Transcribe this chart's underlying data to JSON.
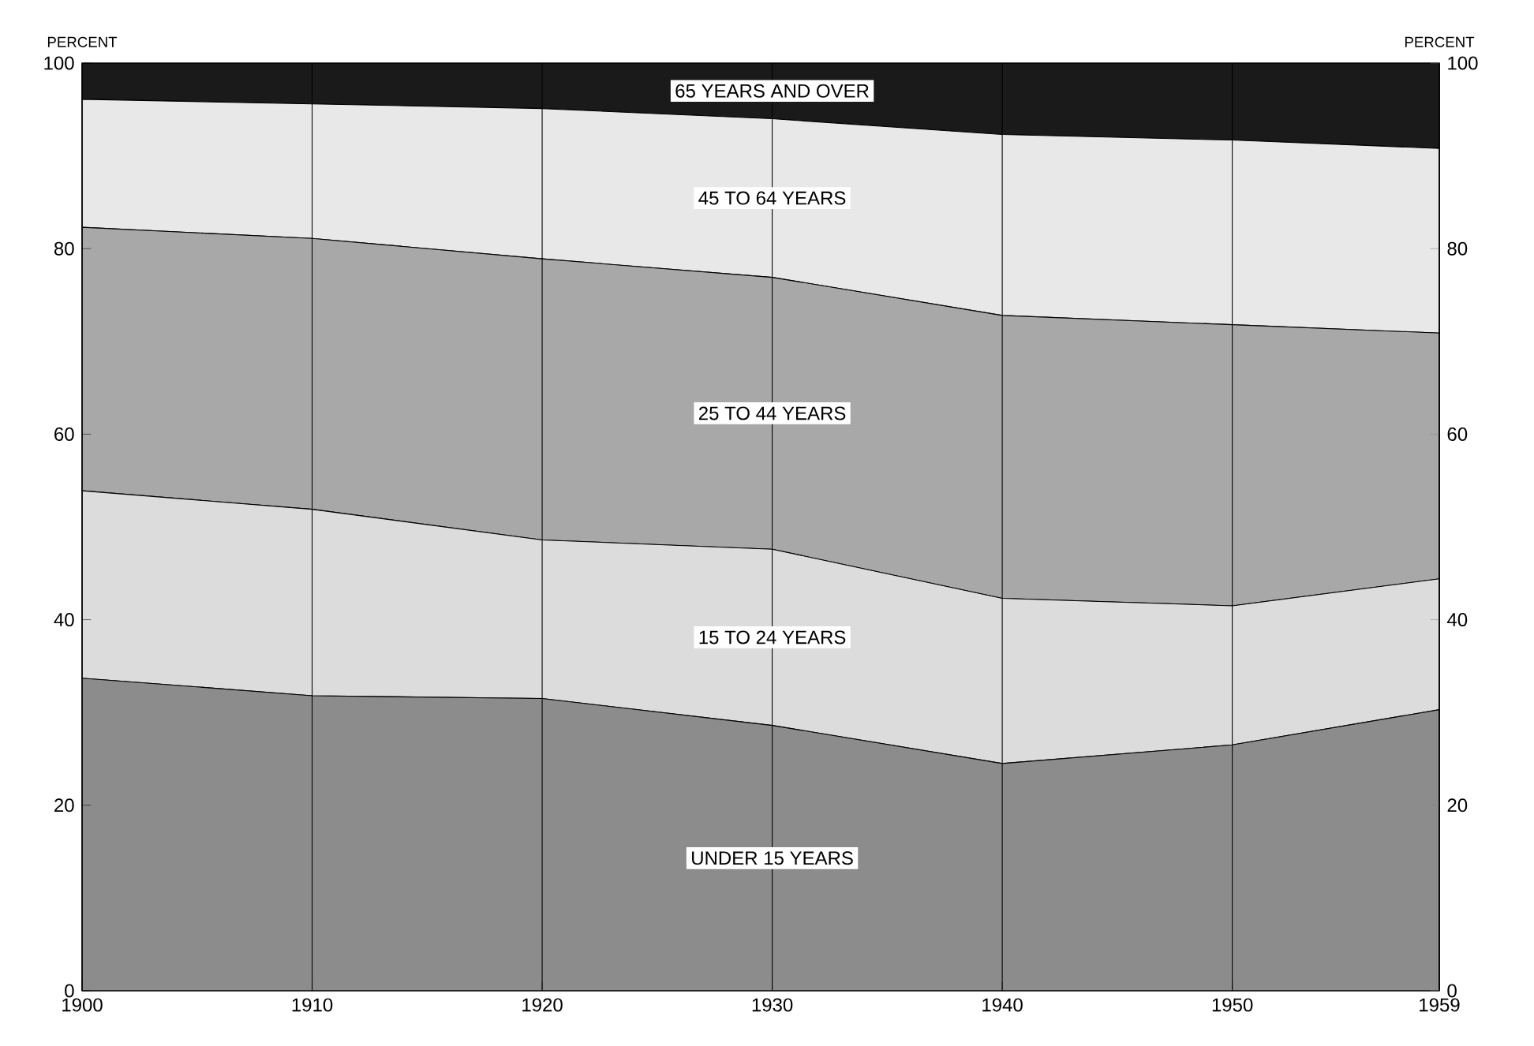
{
  "chart_data": {
    "type": "area",
    "stacked": true,
    "ylabel": "PERCENT",
    "y2label": "PERCENT",
    "x": [
      1900,
      1910,
      1920,
      1930,
      1940,
      1950,
      1959
    ],
    "xlim": [
      1900,
      1959
    ],
    "xticks": [
      1900,
      1910,
      1920,
      1930,
      1940,
      1950,
      1959
    ],
    "ylim": [
      0,
      100
    ],
    "yticks": [
      0,
      20,
      40,
      60,
      80,
      100
    ],
    "y2lim": [
      0,
      100
    ],
    "y2ticks": [
      0,
      20,
      40,
      60,
      80,
      100
    ],
    "grid": "x",
    "series": [
      {
        "name": "UNDER 15 YEARS",
        "color": "#8c8c8c",
        "values": [
          33.7,
          31.8,
          31.5,
          28.6,
          24.5,
          26.5,
          30.3
        ]
      },
      {
        "name": "15 TO 24 YEARS",
        "color": "#dcdcdc",
        "values": [
          20.2,
          20.1,
          17.1,
          19.0,
          17.8,
          15.0,
          14.1
        ]
      },
      {
        "name": "25 TO 44 YEARS",
        "color": "#a8a8a8",
        "values": [
          28.4,
          29.2,
          30.3,
          29.3,
          30.5,
          30.3,
          26.5
        ]
      },
      {
        "name": "45 TO 64 YEARS",
        "color": "#e8e8e8",
        "values": [
          13.8,
          14.5,
          16.2,
          17.1,
          19.5,
          19.9,
          19.9
        ]
      },
      {
        "name": "65 YEARS AND OVER",
        "color": "#1a1a1a",
        "values": [
          3.9,
          4.4,
          4.9,
          6.0,
          7.7,
          8.3,
          9.2
        ]
      }
    ]
  }
}
